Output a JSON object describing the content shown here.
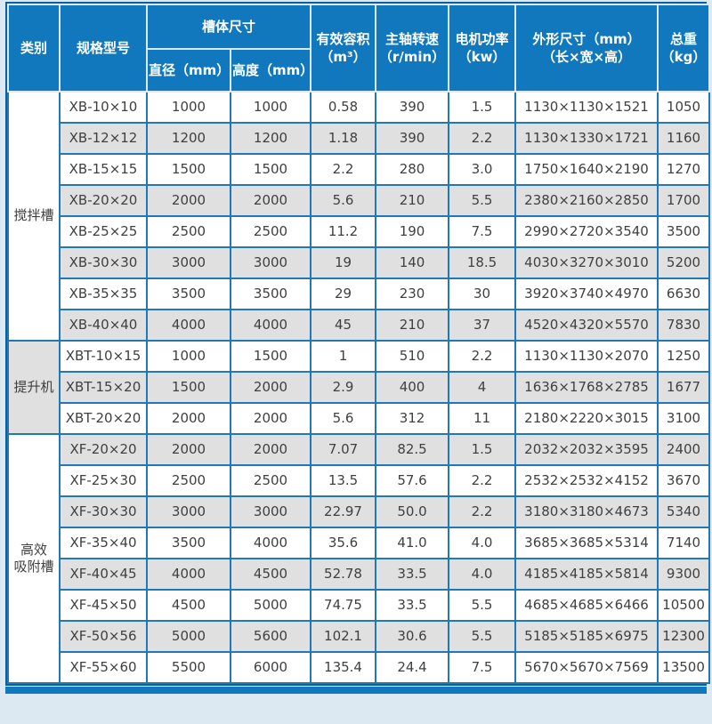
{
  "colors": {
    "header_bg": "#1278bd",
    "header_text": "#ffffff",
    "body_border": "#2277b5",
    "frame_border": "#0d5fa0",
    "alt_row_bg": "#e0e0e0",
    "body_text": "#404040",
    "page_bg": "#dce8f2"
  },
  "table": {
    "header": {
      "category": "类别",
      "model": "规格型号",
      "tank_size": "槽体尺寸",
      "diameter": "直径（mm）",
      "height": "高度（mm）",
      "volume": "有效容积\n（m³）",
      "speed": "主轴转速\n（r/min）",
      "power": "电机功率\n（kw）",
      "dimensions": "外形尺寸（mm）\n（长×宽×高）",
      "weight": "总重\n（kg）"
    },
    "groups": [
      {
        "category": "搅拌槽",
        "rows": [
          [
            "XB-10×10",
            "1000",
            "1000",
            "0.58",
            "390",
            "1.5",
            "1130×1130×1521",
            "1050"
          ],
          [
            "XB-12×12",
            "1200",
            "1200",
            "1.18",
            "390",
            "2.2",
            "1130×1330×1721",
            "1160"
          ],
          [
            "XB-15×15",
            "1500",
            "1500",
            "2.2",
            "280",
            "3.0",
            "1750×1640×2190",
            "1270"
          ],
          [
            "XB-20×20",
            "2000",
            "2000",
            "5.6",
            "210",
            "5.5",
            "2380×2160×2850",
            "1700"
          ],
          [
            "XB-25×25",
            "2500",
            "2500",
            "11.2",
            "190",
            "7.5",
            "2990×2720×3540",
            "3500"
          ],
          [
            "XB-30×30",
            "3000",
            "3000",
            "19",
            "140",
            "18.5",
            "4030×3270×3010",
            "5200"
          ],
          [
            "XB-35×35",
            "3500",
            "3500",
            "29",
            "230",
            "30",
            "3920×3740×4970",
            "6630"
          ],
          [
            "XB-40×40",
            "4000",
            "4000",
            "45",
            "210",
            "37",
            "4520×4320×5570",
            "7830"
          ]
        ]
      },
      {
        "category": "提升机",
        "rows": [
          [
            "XBT-10×15",
            "1000",
            "1500",
            "1",
            "510",
            "2.2",
            "1130×1130×2070",
            "1250"
          ],
          [
            "XBT-15×20",
            "1500",
            "2000",
            "2.9",
            "400",
            "4",
            "1636×1768×2785",
            "1677"
          ],
          [
            "XBT-20×20",
            "2000",
            "2000",
            "5.6",
            "312",
            "11",
            "2180×2220×3015",
            "3100"
          ]
        ]
      },
      {
        "category": "高效\n吸附槽",
        "rows": [
          [
            "XF-20×20",
            "2000",
            "2000",
            "7.07",
            "82.5",
            "1.5",
            "2032×2032×3595",
            "2400"
          ],
          [
            "XF-25×30",
            "2500",
            "2500",
            "13.5",
            "57.6",
            "2.2",
            "2532×2532×4152",
            "3670"
          ],
          [
            "XF-30×30",
            "3000",
            "3000",
            "22.97",
            "50.0",
            "2.2",
            "3180×3180×4673",
            "5340"
          ],
          [
            "XF-35×40",
            "3500",
            "4000",
            "35.6",
            "41.0",
            "4.0",
            "3685×3685×5314",
            "7140"
          ],
          [
            "XF-40×45",
            "4000",
            "4500",
            "52.78",
            "33.5",
            "4.0",
            "4185×4185×5814",
            "9300"
          ],
          [
            "XF-45×50",
            "4500",
            "5000",
            "74.75",
            "33.5",
            "5.5",
            "4685×4685×6466",
            "10500"
          ],
          [
            "XF-50×56",
            "5000",
            "5600",
            "102.1",
            "30.6",
            "5.5",
            "5185×5185×6975",
            "12300"
          ],
          [
            "XF-55×60",
            "5500",
            "6000",
            "135.4",
            "24.4",
            "7.5",
            "5670×5670×7569",
            "13500"
          ]
        ]
      }
    ]
  }
}
